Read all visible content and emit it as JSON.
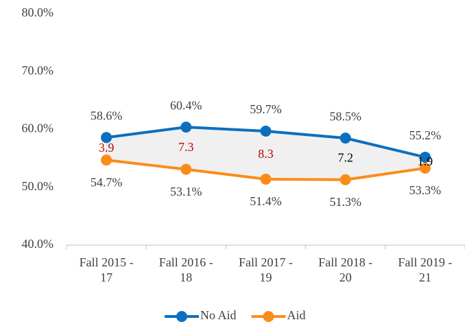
{
  "chart_data": {
    "type": "line",
    "categories": [
      [
        "Fall 2015 -",
        "17"
      ],
      [
        "Fall 2016 -",
        "18"
      ],
      [
        "Fall 2017 -",
        "19"
      ],
      [
        "Fall 2018 -",
        "20"
      ],
      [
        "Fall 2019 -",
        "21"
      ]
    ],
    "series": [
      {
        "name": "No Aid",
        "color": "#0b6fc1",
        "values": [
          58.6,
          60.4,
          59.7,
          58.5,
          55.2
        ],
        "value_labels": [
          "58.6%",
          "60.4%",
          "59.7%",
          "58.5%",
          "55.2%"
        ],
        "label_position": "above"
      },
      {
        "name": "Aid",
        "color": "#fb8c1a",
        "values": [
          54.7,
          53.1,
          51.4,
          51.3,
          53.3
        ],
        "value_labels": [
          "54.7%",
          "53.1%",
          "51.4%",
          "51.3%",
          "53.3%"
        ],
        "label_position": "below"
      }
    ],
    "differences": {
      "values": [
        3.9,
        7.3,
        8.3,
        7.2,
        1.9
      ],
      "colors": [
        "#c00000",
        "#c00000",
        "#c00000",
        "#000000",
        "#000000"
      ]
    },
    "gap_fill": "#f0f0f0",
    "ylim": [
      40,
      80
    ],
    "yticks": [
      {
        "value": 40,
        "label": "40.0%"
      },
      {
        "value": 50,
        "label": "50.0%"
      },
      {
        "value": 60,
        "label": "60.0%"
      },
      {
        "value": 70,
        "label": "70.0%"
      },
      {
        "value": 80,
        "label": "80.0%"
      }
    ],
    "grid": false,
    "legend": "bottom"
  }
}
